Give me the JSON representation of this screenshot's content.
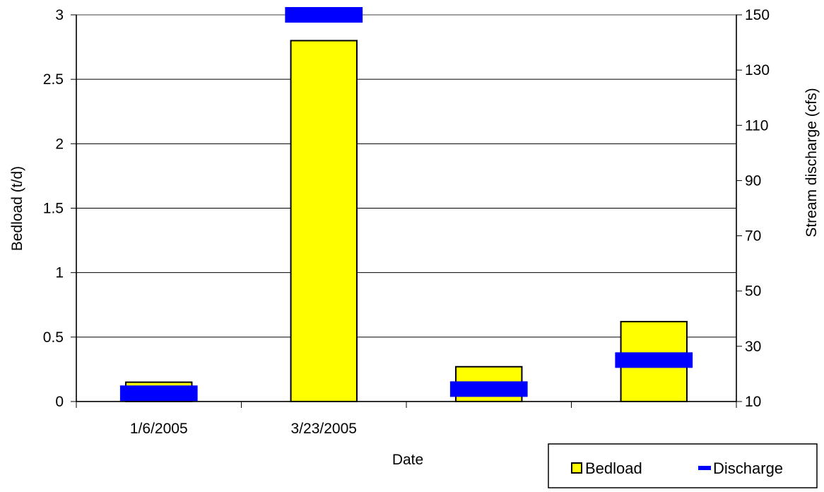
{
  "chart_data": {
    "type": "bar",
    "categories": [
      "1/6/2005",
      "3/23/2005",
      "",
      ""
    ],
    "xlabel": "Date",
    "ylabel": "Bedload (t/d)",
    "y2label": "Stream discharge (cfs)",
    "ylim": [
      0,
      3
    ],
    "y2lim": [
      10,
      150
    ],
    "yticks": [
      "0",
      "0.5",
      "1",
      "1.5",
      "2",
      "2.5",
      "3"
    ],
    "y2ticks": [
      "10",
      "30",
      "50",
      "70",
      "90",
      "110",
      "130",
      "150"
    ],
    "grid": true,
    "legend_position": "bottom-right",
    "series": [
      {
        "name": "Bedload",
        "type": "bar",
        "axis": "left",
        "color": "#ffff00",
        "values": [
          0.15,
          2.8,
          0.27,
          0.62
        ]
      },
      {
        "name": "Discharge",
        "type": "marker",
        "axis": "right",
        "color": "#0000ff",
        "values": [
          13,
          150,
          14.5,
          25
        ]
      }
    ]
  }
}
